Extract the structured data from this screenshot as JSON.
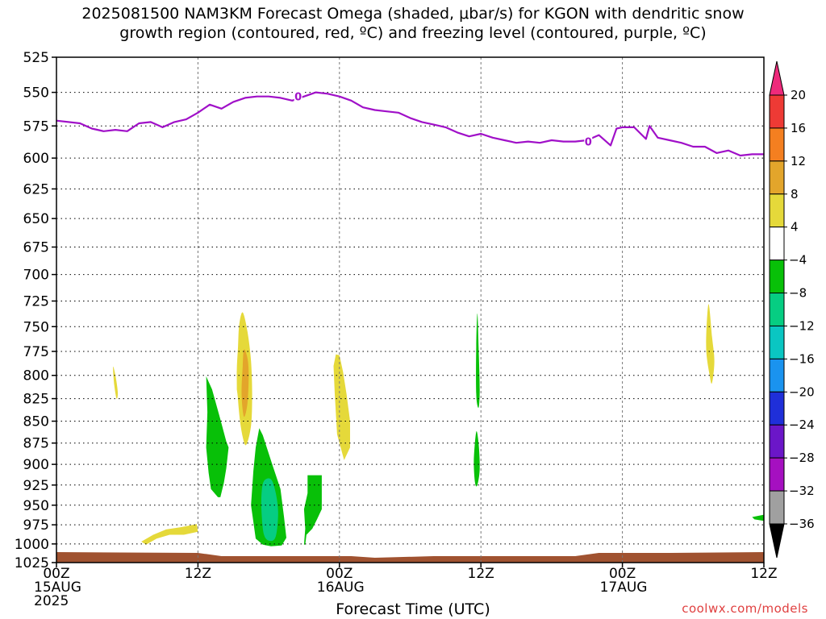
{
  "title_line1": "2025081500 NAM3KM Forecast Omega (shaded, μbar/s) for KGON with dendritic snow",
  "title_line2": "growth region (contoured, red, ºC) and freezing level (contoured, purple, ºC)",
  "credit": "coolwx.com/models",
  "chart_data": {
    "type": "heatmap",
    "title": "2025081500 NAM3KM Forecast Omega (shaded, μbar/s) for KGON with dendritic snow growth region (contoured, red, ºC) and freezing level (contoured, purple, ºC)",
    "xlabel": "Forecast Time (UTC)",
    "ylabel": "",
    "x_ticks": [
      {
        "hour": 0,
        "lines": [
          "00Z",
          "15AUG",
          "2025"
        ]
      },
      {
        "hour": 12,
        "lines": [
          "12Z"
        ]
      },
      {
        "hour": 24,
        "lines": [
          "00Z",
          "16AUG"
        ]
      },
      {
        "hour": 36,
        "lines": [
          "12Z"
        ]
      },
      {
        "hour": 48,
        "lines": [
          "00Z",
          "17AUG"
        ]
      },
      {
        "hour": 60,
        "lines": [
          "12Z"
        ]
      }
    ],
    "xlim": [
      0,
      60
    ],
    "y_ticks": [
      525,
      550,
      575,
      600,
      625,
      650,
      675,
      700,
      725,
      750,
      775,
      800,
      825,
      850,
      875,
      900,
      925,
      950,
      975,
      1000,
      1025
    ],
    "ylim": [
      525,
      1025
    ],
    "y_scale": "log-pressure",
    "grid": true,
    "colorbar": {
      "labels": [
        "20",
        "16",
        "12",
        "8",
        "4",
        "-4",
        "-8",
        "-12",
        "-16",
        "-20",
        "-24",
        "-28",
        "-32",
        "-36"
      ],
      "levels": [
        20,
        16,
        12,
        8,
        4,
        -4,
        -8,
        -12,
        -16,
        -20,
        -24,
        -28,
        -32,
        -36,
        -40
      ],
      "colors": [
        "#ee2a7b",
        "#ee3a35",
        "#f47f20",
        "#e3a52b",
        "#e5d93a",
        "#ffffff",
        "#08c008",
        "#06cd82",
        "#0ac6c2",
        "#1a93ef",
        "#1f2fd9",
        "#6b16c8",
        "#a510c0",
        "#a0a0a0",
        "#000000"
      ]
    },
    "freezing_level": {
      "label": "0",
      "color": "#a010c8",
      "hours": [
        0,
        2,
        3,
        4,
        5,
        6,
        7,
        8,
        9,
        10,
        11,
        12,
        13,
        14,
        15,
        16,
        17,
        18,
        19,
        20,
        21,
        22,
        23,
        24,
        25,
        26,
        27,
        28,
        29,
        30,
        31,
        32,
        33,
        34,
        35,
        36,
        37,
        38,
        39,
        40,
        41,
        42,
        43,
        44,
        45,
        46,
        47,
        47.5,
        48,
        49,
        50,
        50.3,
        51,
        52,
        53,
        54,
        55,
        56,
        57,
        58,
        59,
        60
      ],
      "pressure": [
        571,
        573,
        577,
        579,
        578,
        579,
        573,
        572,
        576,
        572,
        570,
        565,
        559,
        562,
        557,
        554,
        553,
        553,
        554,
        556,
        553,
        550,
        551,
        553,
        556,
        561,
        563,
        564,
        565,
        569,
        572,
        574,
        576,
        580,
        583,
        581,
        584,
        586,
        588,
        587,
        588,
        586,
        587,
        587,
        586,
        582,
        590,
        577,
        576,
        576,
        585,
        575,
        584,
        586,
        588,
        591,
        591,
        596,
        594,
        598,
        597,
        597
      ]
    },
    "regions": [
      {
        "value": 4,
        "color": "#e5d93a",
        "hours": [
          4.8,
          5.0,
          5.2,
          5.1,
          4.9
        ],
        "pressure": [
          791,
          800,
          818,
          825,
          810
        ],
        "smooth": true
      },
      {
        "value": 4,
        "color": "#e5d93a",
        "hours": [
          7.2,
          8.2,
          9.3,
          10.6,
          11.9,
          12.0,
          10.8,
          9.6,
          8.5,
          7.6
        ],
        "pressure": [
          997,
          988,
          981,
          978,
          974,
          984,
          988,
          988,
          993,
          1001
        ]
      },
      {
        "value": 4,
        "color": "#e5d93a",
        "hours": [
          15.6,
          16.1,
          16.4,
          16.4,
          16.1,
          15.8,
          15.5,
          15.3,
          15.3
        ],
        "pressure": [
          785,
          785,
          796,
          812,
          836,
          848,
          834,
          815,
          796
        ]
      },
      {
        "value": 4,
        "color": "#e5d93a",
        "hours": [
          23.7,
          24.0,
          24.3,
          24.6,
          24.9,
          24.9,
          24.4,
          23.8,
          23.6,
          23.5
        ],
        "pressure": [
          778,
          779,
          796,
          820,
          850,
          880,
          895,
          865,
          820,
          790
        ]
      },
      {
        "value": 4,
        "color": "#e5d93a",
        "hours": [
          55.3,
          55.6,
          55.8,
          55.6,
          55.4,
          55.1
        ],
        "pressure": [
          728,
          760,
          785,
          808,
          800,
          770
        ],
        "smooth": true
      },
      {
        "value": 4,
        "color": "#e5d93a",
        "hours": [
          15.8,
          16.2,
          16.5,
          16.6,
          16.5,
          16.1,
          15.8,
          15.5,
          15.3,
          15.4,
          15.5
        ],
        "pressure": [
          736,
          755,
          785,
          820,
          855,
          877,
          868,
          842,
          800,
          770,
          748
        ],
        "smooth": true
      },
      {
        "value": 8,
        "color": "#e3a52b",
        "hours": [
          15.9,
          16.2,
          16.3,
          16.2,
          15.9,
          15.7,
          15.8
        ],
        "pressure": [
          773,
          782,
          800,
          830,
          845,
          820,
          790
        ],
        "smooth": true
      },
      {
        "value": -4,
        "color": "#08c008",
        "hours": [
          12.7,
          13.2,
          13.9,
          14.4,
          14.6,
          14.4,
          14.2,
          13.9,
          13.7,
          13.1,
          12.9,
          12.7,
          12.8
        ],
        "pressure": [
          801,
          815,
          848,
          873,
          880,
          905,
          922,
          940,
          940,
          930,
          910,
          880,
          840
        ]
      },
      {
        "value": -4,
        "color": "#08c008",
        "hours": [
          17.2,
          17.5,
          18.3,
          19.0,
          19.3,
          19.5,
          19.1,
          18.2,
          17.5,
          16.9,
          16.5,
          16.7,
          16.9
        ],
        "pressure": [
          858,
          866,
          900,
          930,
          965,
          992,
          1002,
          1003,
          1001,
          993,
          950,
          908,
          880
        ]
      },
      {
        "value": -4,
        "color": "#08c008",
        "hours": [
          21.3,
          22.5,
          22.5,
          22.1,
          21.7,
          21.2,
          21.1,
          21.0,
          21.1,
          21.0,
          21.3
        ],
        "pressure": [
          913,
          913,
          955,
          968,
          980,
          988,
          1001,
          1001,
          980,
          955,
          935
        ]
      },
      {
        "value": -4,
        "color": "#08c008",
        "hours": [
          35.7,
          35.8,
          35.9,
          35.8,
          35.6,
          35.6
        ],
        "pressure": [
          737,
          770,
          815,
          835,
          820,
          770
        ],
        "smooth": true
      },
      {
        "value": -4,
        "color": "#08c008",
        "hours": [
          35.6,
          35.8,
          35.9,
          35.7,
          35.5,
          35.4
        ],
        "pressure": [
          862,
          875,
          905,
          925,
          922,
          895
        ],
        "smooth": true
      },
      {
        "value": -4,
        "color": "#08c008",
        "hours": [
          59.0,
          60.0,
          60.0,
          59.2
        ],
        "pressure": [
          965,
          962,
          970,
          968
        ]
      },
      {
        "value": -8,
        "color": "#06cd82",
        "hours": [
          17.6,
          18.2,
          18.6,
          18.8,
          18.6,
          18.1,
          17.6,
          17.4,
          17.4
        ],
        "pressure": [
          920,
          918,
          935,
          960,
          990,
          996,
          988,
          960,
          935
        ],
        "smooth": true
      }
    ],
    "surface": {
      "color": "#a05230",
      "pressure": 1013
    }
  }
}
